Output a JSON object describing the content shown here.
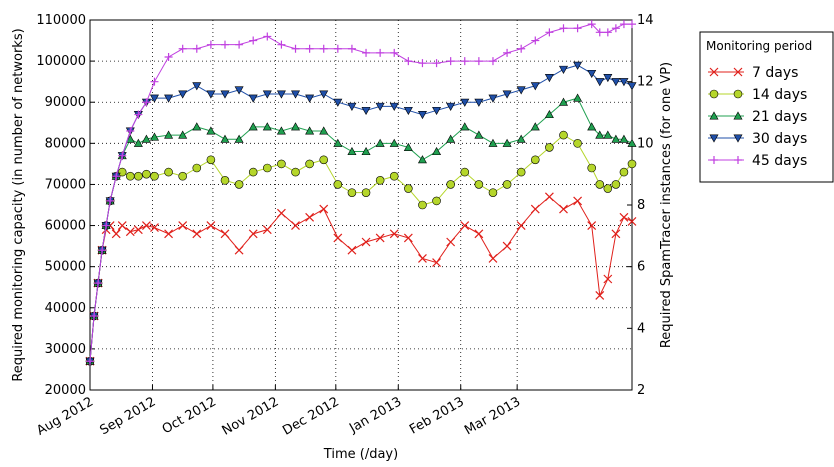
{
  "chart_data": {
    "type": "line",
    "xlabel": "Time (/day)",
    "ylabel": "Required monitoring capacity (in number of networks)",
    "y2label": "Required SpamTracer instances (for one VP)",
    "legend_title": "Monitoring period",
    "legend": "outside upper right",
    "grid": true,
    "x": [
      0,
      2,
      4,
      6,
      8,
      10,
      13,
      16,
      20,
      24,
      28,
      32,
      39,
      46,
      53,
      60,
      67,
      74,
      81,
      88,
      95,
      102,
      109,
      116,
      123,
      130,
      137,
      144,
      151,
      158,
      165,
      172,
      179,
      186,
      193,
      200,
      207,
      214,
      221,
      228,
      235,
      242,
      249,
      253,
      257,
      261,
      265,
      269
    ],
    "xlim": [
      0,
      269
    ],
    "xticks": [
      {
        "value": 0,
        "label": "Aug 2012"
      },
      {
        "value": 31,
        "label": "Sep 2012"
      },
      {
        "value": 61,
        "label": "Oct 2012"
      },
      {
        "value": 92,
        "label": "Nov 2012"
      },
      {
        "value": 122,
        "label": "Dec 2012"
      },
      {
        "value": 153,
        "label": "Jan 2013"
      },
      {
        "value": 184,
        "label": "Feb 2013"
      },
      {
        "value": 212,
        "label": "Mar 2013"
      }
    ],
    "ylim": [
      20000,
      110000
    ],
    "yticks": [
      20000,
      30000,
      40000,
      50000,
      60000,
      70000,
      80000,
      90000,
      100000,
      110000
    ],
    "y2lim": [
      2,
      14
    ],
    "y2ticks": [
      2,
      4,
      6,
      8,
      10,
      12,
      14
    ],
    "series": [
      {
        "name": "7 days",
        "color": "#e0201b",
        "marker": "x",
        "values": [
          27000,
          38000,
          46000,
          54000,
          59000,
          60000,
          58000,
          60000,
          58500,
          59000,
          60000,
          59500,
          58000,
          60000,
          58000,
          60000,
          58000,
          54000,
          58000,
          59000,
          63000,
          60000,
          62000,
          64000,
          57000,
          54000,
          56000,
          57000,
          58000,
          57000,
          52000,
          51000,
          56000,
          60000,
          58000,
          52000,
          55000,
          60000,
          64000,
          67000,
          64000,
          66000,
          60000,
          43000,
          47000,
          58000,
          62000,
          61000
        ]
      },
      {
        "name": "14 days",
        "color": "#b5d62a",
        "marker": "o",
        "values": [
          27000,
          38000,
          46000,
          54000,
          60000,
          66000,
          72000,
          73000,
          72000,
          72000,
          72500,
          72000,
          73000,
          72000,
          74000,
          76000,
          71000,
          70000,
          73000,
          74000,
          75000,
          73000,
          75000,
          76000,
          70000,
          68000,
          68000,
          71000,
          72000,
          69000,
          65000,
          66000,
          70000,
          73000,
          70000,
          68000,
          70000,
          73000,
          76000,
          79000,
          82000,
          80000,
          74000,
          70000,
          69000,
          70000,
          73000,
          75000
        ]
      },
      {
        "name": "21 days",
        "color": "#20a050",
        "marker": "^",
        "values": [
          27000,
          38000,
          46000,
          54000,
          60000,
          66000,
          72000,
          77000,
          81000,
          80000,
          81000,
          81500,
          82000,
          82000,
          84000,
          83000,
          81000,
          81000,
          84000,
          84000,
          83000,
          84000,
          83000,
          83000,
          80000,
          78000,
          78000,
          80000,
          80000,
          79000,
          76000,
          78000,
          81000,
          84000,
          82000,
          80000,
          80000,
          81000,
          84000,
          87000,
          90000,
          91000,
          84000,
          82000,
          82000,
          81000,
          81000,
          80000
        ]
      },
      {
        "name": "30 days",
        "color": "#1f4fa8",
        "marker": "v",
        "values": [
          27000,
          38000,
          46000,
          54000,
          60000,
          66000,
          72000,
          77000,
          83000,
          87000,
          90000,
          91000,
          91000,
          92000,
          94000,
          92000,
          92000,
          93000,
          91000,
          92000,
          92000,
          92000,
          91000,
          92000,
          90000,
          89000,
          88000,
          89000,
          89000,
          88000,
          87000,
          88000,
          89000,
          90000,
          90000,
          91000,
          92000,
          93000,
          94000,
          96000,
          98000,
          99000,
          97000,
          95000,
          96000,
          95000,
          95000,
          94000
        ]
      },
      {
        "name": "45 days",
        "color": "#c040e0",
        "marker": "+",
        "values": [
          27000,
          38000,
          46000,
          54000,
          60000,
          66000,
          72000,
          77000,
          83000,
          87000,
          90000,
          95000,
          101000,
          103000,
          103000,
          104000,
          104000,
          104000,
          105000,
          106000,
          104000,
          103000,
          103000,
          103000,
          103000,
          103000,
          102000,
          102000,
          102000,
          100000,
          99500,
          99500,
          100000,
          100000,
          100000,
          100000,
          102000,
          103000,
          105000,
          107000,
          108000,
          108000,
          109000,
          107000,
          107000,
          108000,
          109000,
          109000
        ]
      }
    ]
  }
}
